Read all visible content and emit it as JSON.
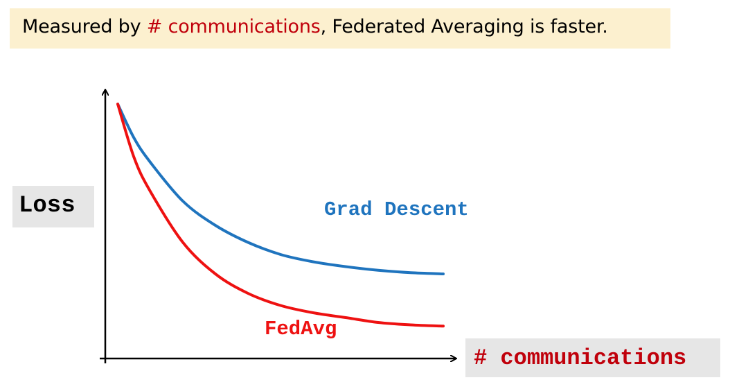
{
  "title": {
    "prefix": "Measured by ",
    "highlight": "# communications",
    "suffix": ", Federated Averaging is faster."
  },
  "colors": {
    "title_background": "#fcf0cf",
    "highlight": "#c0000b",
    "grad_descent": "#1f74be",
    "fedavg": "#ee1111",
    "label_background": "#e6e6e6"
  },
  "chart_data": {
    "type": "line",
    "xlabel": "# communications",
    "ylabel": "Loss",
    "xlim": [
      0,
      1
    ],
    "ylim": [
      0,
      1
    ],
    "grid": false,
    "ticks": false,
    "series": [
      {
        "name": "Grad Descent",
        "x": [
          0,
          0.05,
          0.1,
          0.2,
          0.3,
          0.4,
          0.5,
          0.6,
          0.7,
          0.8,
          0.9,
          1.0
        ],
        "y": [
          1.0,
          0.86,
          0.76,
          0.6,
          0.5,
          0.43,
          0.38,
          0.35,
          0.33,
          0.315,
          0.305,
          0.3
        ]
      },
      {
        "name": "FedAvg",
        "x": [
          0,
          0.05,
          0.1,
          0.2,
          0.3,
          0.4,
          0.5,
          0.6,
          0.7,
          0.8,
          0.9,
          1.0
        ],
        "y": [
          1.0,
          0.78,
          0.64,
          0.43,
          0.3,
          0.22,
          0.17,
          0.14,
          0.12,
          0.1,
          0.09,
          0.085
        ]
      }
    ]
  }
}
